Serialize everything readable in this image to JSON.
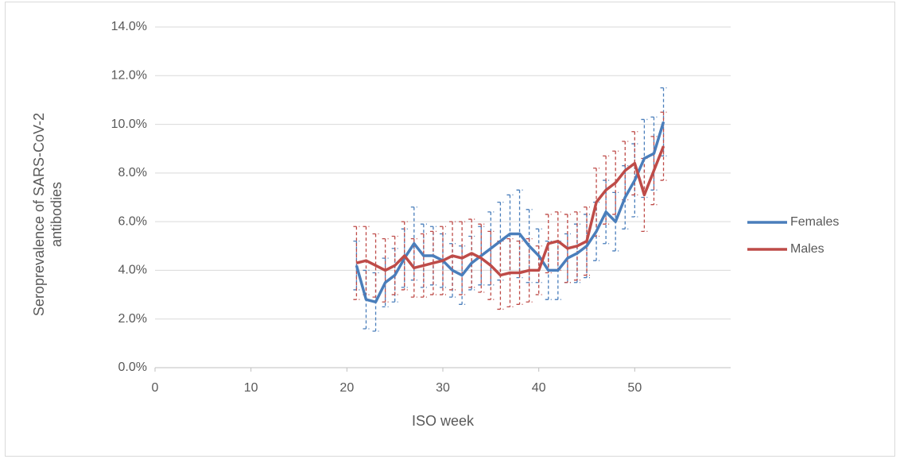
{
  "chart_data": {
    "type": "line",
    "xlabel": "ISO week",
    "ylabel": "Seroprevalence of SARS-CoV-2 antibodies",
    "x": [
      21,
      22,
      23,
      24,
      25,
      26,
      27,
      28,
      29,
      30,
      31,
      32,
      33,
      34,
      35,
      36,
      37,
      38,
      39,
      40,
      41,
      42,
      43,
      44,
      45,
      46,
      47,
      48,
      49,
      50,
      51,
      52,
      53
    ],
    "series": [
      {
        "name": "Females",
        "color": "#4a7ebb",
        "values": [
          4.2,
          2.8,
          2.7,
          3.5,
          3.8,
          4.5,
          5.1,
          4.6,
          4.6,
          4.4,
          4.0,
          3.8,
          4.3,
          4.6,
          4.9,
          5.2,
          5.5,
          5.5,
          5.0,
          4.6,
          4.0,
          4.0,
          4.5,
          4.7,
          5.0,
          5.6,
          6.4,
          6.0,
          7.0,
          7.7,
          8.6,
          8.8,
          10.1
        ],
        "errors": [
          1.0,
          1.2,
          1.2,
          1.0,
          1.1,
          1.2,
          1.5,
          1.3,
          1.2,
          1.1,
          1.1,
          1.2,
          1.1,
          1.2,
          1.5,
          1.6,
          1.6,
          1.8,
          1.5,
          1.1,
          1.2,
          1.2,
          1.0,
          1.2,
          1.3,
          1.2,
          1.3,
          1.2,
          1.3,
          1.5,
          1.6,
          1.5,
          1.4
        ]
      },
      {
        "name": "Males",
        "color": "#be4b48",
        "values": [
          4.3,
          4.4,
          4.2,
          4.0,
          4.2,
          4.6,
          4.1,
          4.2,
          4.3,
          4.4,
          4.6,
          4.5,
          4.7,
          4.5,
          4.2,
          3.8,
          3.9,
          3.9,
          4.0,
          4.0,
          5.1,
          5.2,
          4.9,
          5.0,
          5.2,
          6.8,
          7.3,
          7.6,
          8.1,
          8.4,
          7.1,
          8.1,
          9.1
        ],
        "errors": [
          1.5,
          1.4,
          1.3,
          1.3,
          1.2,
          1.4,
          1.2,
          1.3,
          1.3,
          1.4,
          1.4,
          1.5,
          1.4,
          1.4,
          1.4,
          1.4,
          1.4,
          1.3,
          1.3,
          1.0,
          1.2,
          1.2,
          1.4,
          1.4,
          1.4,
          1.4,
          1.4,
          1.3,
          1.2,
          1.3,
          1.5,
          1.4,
          1.4
        ]
      }
    ],
    "xlim": [
      0,
      60
    ],
    "xticks": [
      0,
      10,
      20,
      30,
      40,
      50
    ],
    "ylim": [
      0,
      14
    ],
    "yticks": [
      {
        "value": 0,
        "label": "0.0%"
      },
      {
        "value": 2,
        "label": "2.0%"
      },
      {
        "value": 4,
        "label": "4.0%"
      },
      {
        "value": 6,
        "label": "6.0%"
      },
      {
        "value": 8,
        "label": "8.0%"
      },
      {
        "value": 10,
        "label": "10.0%"
      },
      {
        "value": 12,
        "label": "12.0%"
      },
      {
        "value": 14,
        "label": "14.0%"
      }
    ],
    "grid": true,
    "legend": "right"
  }
}
